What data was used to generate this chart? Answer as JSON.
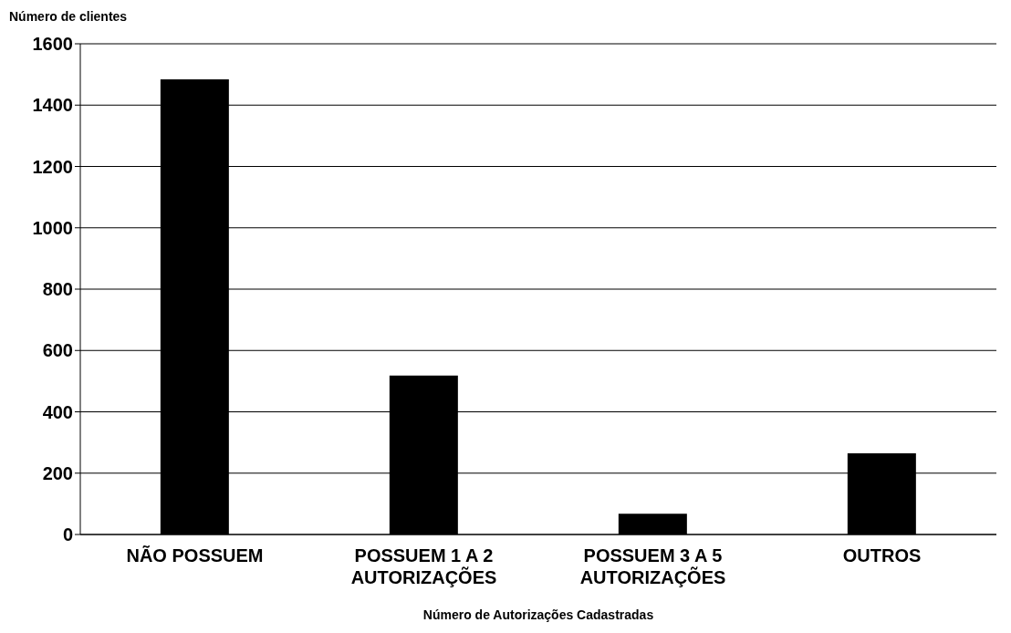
{
  "chart_data": {
    "type": "bar",
    "xlabel": "Número de Autorizações Cadastradas",
    "ylabel": "Número de clientes",
    "categories": [
      "NÃO POSSUEM",
      "POSSUEM 1 A 2 AUTORIZAÇÕES",
      "POSSUEM 3 A 5 AUTORIZAÇÕES",
      "OUTROS"
    ],
    "values": [
      1484,
      518,
      68,
      265
    ],
    "color": "#000000",
    "ylim": [
      0,
      1600
    ],
    "yticks": [
      0,
      200,
      400,
      600,
      800,
      1000,
      1200,
      1400,
      1600
    ],
    "grid": "y"
  }
}
